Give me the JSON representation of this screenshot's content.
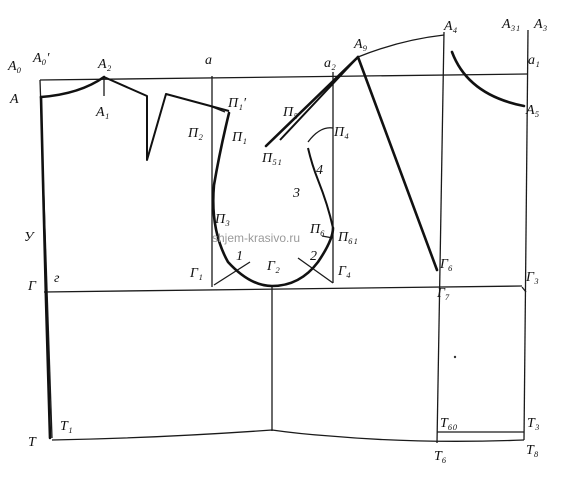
{
  "diagram": {
    "labels": {
      "A0": "A₀",
      "A0prime": "A₀′",
      "A2": "A₂",
      "A": "A",
      "A1": "A₁",
      "a": "a",
      "a2": "a₂",
      "A9": "A₉",
      "A4": "A₄",
      "A31": "A₃₁",
      "A3": "A₃",
      "a1": "a₁",
      "A5": "A₅",
      "P1prime": "П₁′",
      "P2": "П₂",
      "P1": "П₁",
      "P5": "П₅",
      "P4": "П₄",
      "P51": "П₅₁",
      "n4": "4",
      "n3": "3",
      "P3": "П₃",
      "P6": "П₆",
      "P61": "П₆₁",
      "U": "У",
      "G": "Г",
      "g": "г",
      "G1": "Г₁",
      "n1": "1",
      "G2": "Г₂",
      "n2": "2",
      "G4": "Г₄",
      "G6": "Г₆",
      "G7": "Г₇",
      "G3": "Г₃",
      "T": "Т",
      "T1": "Т₁",
      "T60": "Т₆₀",
      "T3": "Т₃",
      "T6": "Т₆",
      "T8": "Т₈"
    },
    "watermark": "shjem-krasivo.ru"
  }
}
